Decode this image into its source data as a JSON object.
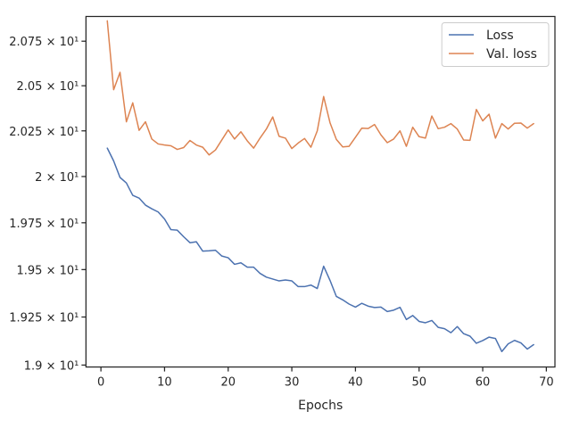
{
  "chart_data": {
    "type": "line",
    "title": "",
    "xlabel": "Epochs",
    "ylabel": "",
    "xlim": [
      -2.35,
      71.35
    ],
    "ylim": [
      18.99,
      20.89
    ],
    "yscale": "log",
    "grid": false,
    "legend_position": "top-right",
    "xticks": [
      0,
      10,
      20,
      30,
      40,
      50,
      60,
      70
    ],
    "xtick_labels": [
      "0",
      "10",
      "20",
      "30",
      "40",
      "50",
      "60",
      "70"
    ],
    "yticks": [
      19.0,
      19.25,
      19.5,
      19.75,
      20.0,
      20.25,
      20.5,
      20.75
    ],
    "ytick_labels": [
      "1.9 × 10¹",
      "1.925 × 10¹",
      "1.95 × 10¹",
      "1.975 × 10¹",
      "2 × 10¹",
      "2.025 × 10¹",
      "2.05 × 10¹",
      "2.075 × 10¹"
    ],
    "x": [
      1,
      2,
      3,
      4,
      5,
      6,
      7,
      8,
      9,
      10,
      11,
      12,
      13,
      14,
      15,
      16,
      17,
      18,
      19,
      20,
      21,
      22,
      23,
      24,
      25,
      26,
      27,
      28,
      29,
      30,
      31,
      32,
      33,
      34,
      35,
      36,
      37,
      38,
      39,
      40,
      41,
      42,
      43,
      44,
      45,
      46,
      47,
      48,
      49,
      50,
      51,
      52,
      53,
      54,
      55,
      56,
      57,
      58,
      59,
      60,
      61,
      62,
      63,
      64,
      65,
      66,
      67,
      68
    ],
    "series": [
      {
        "name": "Loss",
        "color": "#4c72b0",
        "values": [
          20.155,
          20.085,
          19.995,
          19.965,
          19.898,
          19.883,
          19.845,
          19.825,
          19.808,
          19.77,
          19.713,
          19.71,
          19.675,
          19.643,
          19.648,
          19.598,
          19.6,
          19.603,
          19.572,
          19.563,
          19.528,
          19.536,
          19.513,
          19.513,
          19.48,
          19.46,
          19.45,
          19.44,
          19.445,
          19.44,
          19.41,
          19.41,
          19.418,
          19.4,
          19.518,
          19.443,
          19.358,
          19.34,
          19.318,
          19.302,
          19.322,
          19.307,
          19.3,
          19.302,
          19.279,
          19.286,
          19.301,
          19.237,
          19.258,
          19.227,
          19.22,
          19.232,
          19.196,
          19.189,
          19.168,
          19.2,
          19.163,
          19.15,
          19.113,
          19.127,
          19.145,
          19.138,
          19.07,
          19.11,
          19.128,
          19.115,
          19.083,
          19.106
        ]
      },
      {
        "name": "Val. loss",
        "color": "#dd8452",
        "values": [
          20.865,
          20.478,
          20.575,
          20.3,
          20.405,
          20.253,
          20.3,
          20.205,
          20.178,
          20.172,
          20.168,
          20.148,
          20.158,
          20.197,
          20.172,
          20.16,
          20.118,
          20.145,
          20.2,
          20.255,
          20.205,
          20.245,
          20.195,
          20.155,
          20.21,
          20.26,
          20.327,
          20.22,
          20.21,
          20.153,
          20.183,
          20.208,
          20.16,
          20.25,
          20.44,
          20.295,
          20.203,
          20.162,
          20.165,
          20.215,
          20.265,
          20.263,
          20.285,
          20.228,
          20.185,
          20.205,
          20.25,
          20.165,
          20.27,
          20.218,
          20.21,
          20.332,
          20.262,
          20.27,
          20.29,
          20.26,
          20.2,
          20.198,
          20.368,
          20.305,
          20.342,
          20.21,
          20.29,
          20.26,
          20.292,
          20.293,
          20.265,
          20.29
        ]
      }
    ]
  }
}
